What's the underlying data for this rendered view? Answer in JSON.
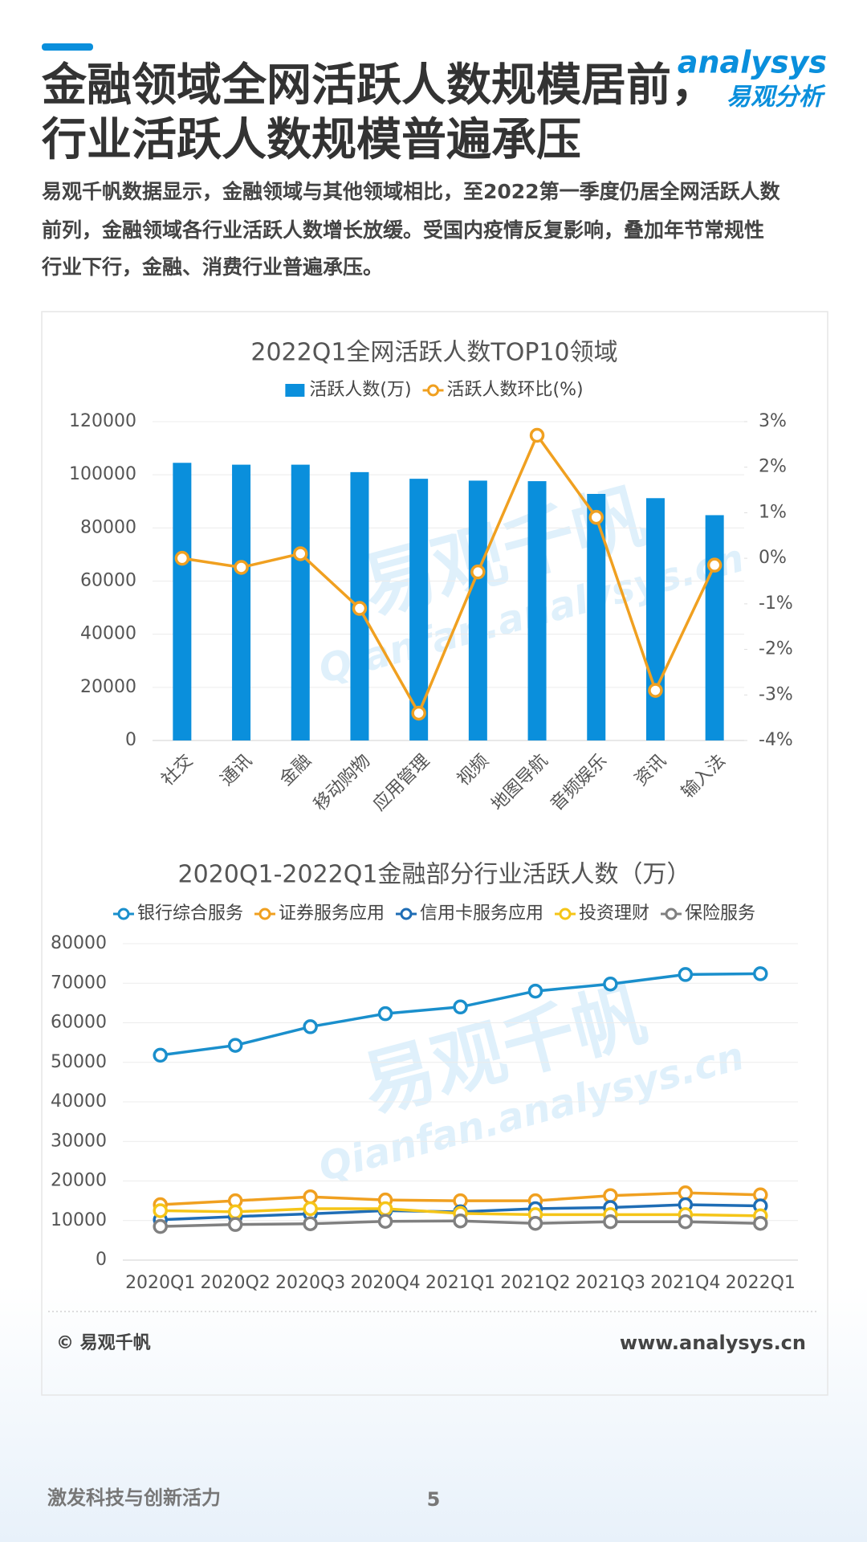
{
  "header": {
    "title": [
      "金融领域全网活跃人数规模居前，",
      "行业活跃人数规模普遍承压"
    ],
    "logo": "analysys",
    "logo_cn": "易观分析"
  },
  "description": [
    "易观千帆数据显示，金融领域与其他领域相比，至2022第一季度仍居全网活跃人数",
    "前列，金融领域各行业活跃人数增长放缓。受国内疫情反复影响，叠加年节常规性",
    "行业下行，金融、消费行业普遍承压。"
  ],
  "watermark": [
    "易观千帆",
    "Qianfan.analysys.cn"
  ],
  "chart_data": [
    {
      "type": "bar",
      "title": "2022Q1全网活跃人数TOP10领域",
      "categories": [
        "社交",
        "通讯",
        "金融",
        "移动购物",
        "应用管理",
        "视频",
        "地图导航",
        "音频娱乐",
        "资讯",
        "输入法"
      ],
      "series": [
        {
          "name": "活跃人数(万)",
          "color": "#0a8fdc",
          "type": "bar",
          "values": [
            104500,
            103800,
            103800,
            101000,
            98500,
            97800,
            97600,
            92800,
            91200,
            84800
          ]
        },
        {
          "name": "活跃人数环比(%)",
          "color": "#f0a020",
          "type": "line",
          "axis": "y2",
          "values": [
            0.0,
            -0.2,
            0.1,
            -1.1,
            -3.4,
            -0.3,
            2.7,
            0.9,
            -2.9,
            -0.15
          ]
        }
      ],
      "ylim": [
        0,
        120000
      ],
      "yticks": [
        0,
        20000,
        40000,
        60000,
        80000,
        100000,
        120000
      ],
      "y2lim": [
        -4,
        3
      ],
      "y2ticks": [
        {
          "value": -4,
          "label": "-4%"
        },
        {
          "value": -3,
          "label": "-3%"
        },
        {
          "value": -2,
          "label": "-2%"
        },
        {
          "value": -1,
          "label": "-1%"
        },
        {
          "value": 0,
          "label": "0%"
        },
        {
          "value": 1,
          "label": "1%"
        },
        {
          "value": 2,
          "label": "2%"
        },
        {
          "value": 3,
          "label": "3%"
        }
      ],
      "grid": true,
      "legend": "top"
    },
    {
      "type": "line",
      "title": "2020Q1-2022Q1金融部分行业活跃人数（万）",
      "categories": [
        "2020Q1",
        "2020Q2",
        "2020Q3",
        "2020Q4",
        "2021Q1",
        "2021Q2",
        "2021Q3",
        "2021Q4",
        "2022Q1"
      ],
      "series": [
        {
          "name": "银行综合服务",
          "color": "#1a8fcc",
          "values": [
            51800,
            54300,
            59000,
            62300,
            64000,
            68000,
            69800,
            72200,
            72400
          ]
        },
        {
          "name": "证券服务应用",
          "color": "#f0a020",
          "values": [
            14000,
            15000,
            16000,
            15200,
            15000,
            15000,
            16300,
            17000,
            16500
          ]
        },
        {
          "name": "信用卡服务应用",
          "color": "#1f6db5",
          "values": [
            10200,
            11000,
            11700,
            12500,
            12200,
            13000,
            13300,
            14000,
            13700
          ]
        },
        {
          "name": "投资理财",
          "color": "#f5c518",
          "values": [
            12500,
            12200,
            13000,
            13000,
            11800,
            11500,
            11500,
            11500,
            11200
          ]
        },
        {
          "name": "保险服务",
          "color": "#808080",
          "values": [
            8500,
            9000,
            9200,
            9800,
            9900,
            9300,
            9700,
            9700,
            9300
          ]
        }
      ],
      "ylim": [
        0,
        80000
      ],
      "yticks": [
        0,
        10000,
        20000,
        30000,
        40000,
        50000,
        60000,
        70000,
        80000
      ],
      "grid": true,
      "legend": "top"
    }
  ],
  "footer": {
    "source": "© 易观千帆",
    "url": "www.analysys.cn",
    "slogan": "激发科技与创新活力",
    "page": "5"
  }
}
